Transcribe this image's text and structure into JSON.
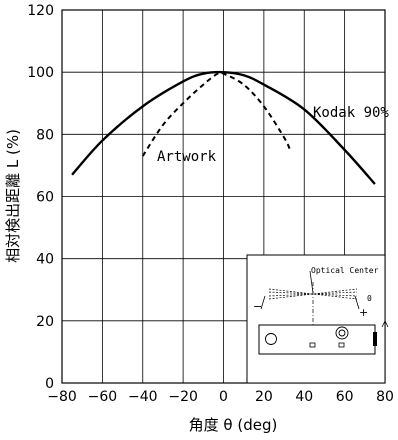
{
  "chart_data": {
    "type": "line",
    "xlabel": "角度 θ (deg)",
    "ylabel": "相対検出距離 L (%)",
    "xlim": [
      -80,
      80
    ],
    "ylim": [
      0,
      120
    ],
    "x_ticks": [
      -80,
      -60,
      -40,
      -20,
      0,
      20,
      40,
      60,
      80
    ],
    "y_ticks": [
      0,
      20,
      40,
      60,
      80,
      100,
      120
    ],
    "x_tick_labels": [
      "−80",
      "−60",
      "−40",
      "−20",
      "0",
      "20",
      "40",
      "60",
      "80"
    ],
    "y_tick_labels": [
      "0",
      "20",
      "40",
      "60",
      "80",
      "100",
      "120"
    ],
    "grid": true,
    "series": [
      {
        "name": "Kodak 90%",
        "style": "solid",
        "x": [
          -75,
          -60,
          -40,
          -20,
          -10,
          0,
          10,
          20,
          40,
          60,
          75
        ],
        "y": [
          67,
          78,
          89,
          97,
          99.5,
          100,
          99,
          96,
          88,
          75,
          64
        ]
      },
      {
        "name": "Artwork",
        "style": "dashed",
        "x": [
          -40,
          -30,
          -20,
          -10,
          -3,
          0,
          10,
          20,
          30,
          33
        ],
        "y": [
          73,
          83,
          90,
          96,
          99.5,
          99.5,
          96,
          89,
          79,
          75
        ]
      }
    ]
  },
  "inset": {
    "label": "Optical Center",
    "plus_sign": "+",
    "minus_sign": "−",
    "zero_mark": "0"
  }
}
